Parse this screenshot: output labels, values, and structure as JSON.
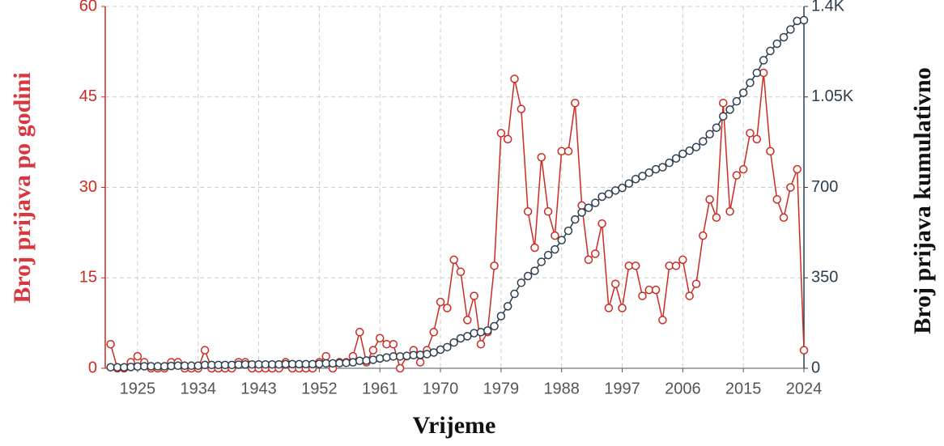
{
  "chart_data": {
    "type": "line",
    "x_label": "Vrijeme",
    "y_label": "Broj prijava po godini",
    "y2_label": "Broj prijava kumulativno",
    "x": [
      1921,
      1922,
      1923,
      1924,
      1925,
      1926,
      1927,
      1928,
      1929,
      1930,
      1931,
      1932,
      1933,
      1934,
      1935,
      1936,
      1937,
      1938,
      1939,
      1940,
      1941,
      1942,
      1943,
      1944,
      1945,
      1946,
      1947,
      1948,
      1949,
      1950,
      1951,
      1952,
      1953,
      1954,
      1955,
      1956,
      1957,
      1958,
      1959,
      1960,
      1961,
      1962,
      1963,
      1964,
      1965,
      1966,
      1967,
      1968,
      1969,
      1970,
      1971,
      1972,
      1973,
      1974,
      1975,
      1976,
      1977,
      1978,
      1979,
      1980,
      1981,
      1982,
      1983,
      1984,
      1985,
      1986,
      1987,
      1988,
      1989,
      1990,
      1991,
      1992,
      1993,
      1994,
      1995,
      1996,
      1997,
      1998,
      1999,
      2000,
      2001,
      2002,
      2003,
      2004,
      2005,
      2006,
      2007,
      2008,
      2009,
      2010,
      2011,
      2012,
      2013,
      2014,
      2015,
      2016,
      2017,
      2018,
      2019,
      2020,
      2021,
      2022,
      2023,
      2024
    ],
    "series": [
      {
        "color": "#cc2b22",
        "values": [
          4,
          0,
          0,
          1,
          2,
          1,
          0,
          0,
          0,
          1,
          1,
          0,
          0,
          0,
          3,
          0,
          0,
          0,
          0,
          1,
          1,
          0,
          0,
          0,
          0,
          0,
          1,
          0,
          0,
          0,
          0,
          1,
          2,
          0,
          1,
          1,
          2,
          6,
          1,
          3,
          5,
          4,
          4,
          0,
          2,
          3,
          1,
          3,
          6,
          11,
          10,
          18,
          16,
          8,
          12,
          4,
          6,
          17,
          39,
          38,
          48,
          43,
          26,
          20,
          35,
          26,
          22,
          36,
          36,
          44,
          27,
          18,
          19,
          24,
          10,
          14,
          10,
          17,
          17,
          12,
          13,
          13,
          8,
          17,
          17,
          18,
          12,
          14,
          22,
          28,
          25,
          44,
          26,
          32,
          33,
          39,
          38,
          49,
          36,
          28,
          25,
          30,
          33,
          3
        ]
      },
      {
        "color": "#2b3e50",
        "axis": "y2",
        "values": [
          4,
          4,
          4,
          5,
          7,
          8,
          8,
          8,
          8,
          9,
          10,
          10,
          10,
          10,
          13,
          13,
          13,
          13,
          13,
          14,
          15,
          15,
          15,
          15,
          15,
          15,
          16,
          16,
          16,
          16,
          16,
          17,
          19,
          19,
          20,
          21,
          23,
          29,
          30,
          33,
          38,
          42,
          46,
          46,
          48,
          51,
          52,
          55,
          61,
          72,
          82,
          100,
          116,
          124,
          136,
          140,
          146,
          163,
          202,
          240,
          288,
          331,
          357,
          377,
          412,
          438,
          460,
          496,
          532,
          576,
          603,
          621,
          640,
          664,
          674,
          688,
          698,
          715,
          732,
          744,
          757,
          770,
          778,
          795,
          812,
          830,
          842,
          856,
          878,
          906,
          931,
          975,
          1001,
          1033,
          1066,
          1105,
          1143,
          1192,
          1228,
          1256,
          1281,
          1311,
          1344,
          1347
        ]
      }
    ],
    "xlim": [
      1920.2,
      2024
    ],
    "xticks": [
      1925,
      1934,
      1943,
      1952,
      1961,
      1970,
      1979,
      1988,
      1997,
      2006,
      2015,
      2024
    ],
    "ylim": [
      0,
      60
    ],
    "yticks": [
      0,
      15,
      30,
      45,
      60
    ],
    "y2lim": [
      0,
      1400
    ],
    "y2ticks": [
      0,
      350,
      700,
      {
        "value": 1050,
        "label": "1.05K"
      },
      {
        "value": 1400,
        "label": "1.4K"
      }
    ],
    "grid": true
  }
}
